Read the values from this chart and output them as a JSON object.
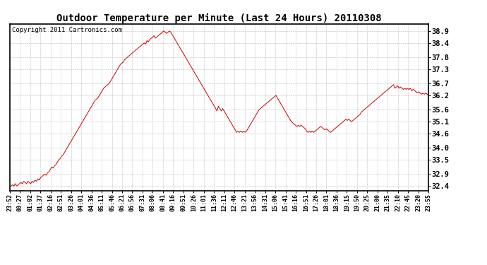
{
  "title": "Outdoor Temperature per Minute (Last 24 Hours) 20110308",
  "copyright_text": "Copyright 2011 Cartronics.com",
  "line_color": "#cc0000",
  "bg_color": "#ffffff",
  "plot_bg_color": "#ffffff",
  "grid_color": "#bbbbbb",
  "yticks": [
    32.4,
    32.9,
    33.5,
    34.0,
    34.6,
    35.1,
    35.6,
    36.2,
    36.7,
    37.3,
    37.8,
    38.4,
    38.9
  ],
  "ylim": [
    32.2,
    39.2
  ],
  "xtick_labels": [
    "23:52",
    "00:27",
    "01:02",
    "01:37",
    "02:16",
    "02:51",
    "03:26",
    "04:01",
    "04:36",
    "05:11",
    "05:46",
    "06:21",
    "06:56",
    "07:31",
    "08:06",
    "08:41",
    "09:16",
    "09:51",
    "10:26",
    "11:01",
    "11:36",
    "12:11",
    "12:46",
    "13:21",
    "13:56",
    "14:31",
    "15:06",
    "15:41",
    "16:16",
    "16:51",
    "17:26",
    "18:01",
    "18:36",
    "19:15",
    "19:50",
    "20:25",
    "21:00",
    "21:35",
    "22:10",
    "22:45",
    "23:20",
    "23:55"
  ],
  "data_points": [
    32.4,
    32.4,
    32.45,
    32.4,
    32.5,
    32.4,
    32.45,
    32.5,
    32.55,
    32.5,
    32.6,
    32.55,
    32.5,
    32.6,
    32.55,
    32.5,
    32.6,
    32.55,
    32.65,
    32.6,
    32.7,
    32.65,
    32.75,
    32.8,
    32.85,
    32.9,
    32.85,
    32.95,
    33.0,
    33.1,
    33.2,
    33.15,
    33.25,
    33.3,
    33.4,
    33.5,
    33.55,
    33.65,
    33.7,
    33.8,
    33.9,
    34.0,
    34.1,
    34.2,
    34.3,
    34.4,
    34.5,
    34.6,
    34.7,
    34.8,
    34.9,
    35.0,
    35.1,
    35.2,
    35.3,
    35.4,
    35.5,
    35.6,
    35.7,
    35.8,
    35.9,
    36.0,
    36.05,
    36.1,
    36.2,
    36.3,
    36.4,
    36.5,
    36.55,
    36.6,
    36.65,
    36.7,
    36.8,
    36.9,
    37.0,
    37.1,
    37.2,
    37.3,
    37.4,
    37.5,
    37.55,
    37.6,
    37.7,
    37.75,
    37.8,
    37.85,
    37.9,
    37.95,
    38.0,
    38.05,
    38.1,
    38.15,
    38.2,
    38.25,
    38.3,
    38.35,
    38.4,
    38.35,
    38.5,
    38.45,
    38.55,
    38.6,
    38.65,
    38.7,
    38.6,
    38.65,
    38.7,
    38.75,
    38.8,
    38.85,
    38.9,
    38.85,
    38.8,
    38.85,
    38.9,
    38.85,
    38.75,
    38.65,
    38.55,
    38.45,
    38.35,
    38.25,
    38.15,
    38.05,
    37.95,
    37.85,
    37.75,
    37.65,
    37.55,
    37.45,
    37.35,
    37.25,
    37.15,
    37.05,
    36.95,
    36.85,
    36.75,
    36.65,
    36.55,
    36.45,
    36.35,
    36.25,
    36.15,
    36.05,
    35.95,
    35.85,
    35.75,
    35.65,
    35.55,
    35.75,
    35.65,
    35.55,
    35.65,
    35.55,
    35.45,
    35.35,
    35.25,
    35.15,
    35.05,
    34.95,
    34.85,
    34.75,
    34.65,
    34.7,
    34.65,
    34.7,
    34.65,
    34.7,
    34.65,
    34.7,
    34.8,
    34.9,
    35.0,
    35.1,
    35.2,
    35.3,
    35.4,
    35.5,
    35.6,
    35.65,
    35.7,
    35.75,
    35.8,
    35.85,
    35.9,
    35.95,
    36.0,
    36.05,
    36.1,
    36.15,
    36.2,
    36.1,
    36.0,
    35.9,
    35.8,
    35.7,
    35.6,
    35.5,
    35.4,
    35.3,
    35.2,
    35.1,
    35.05,
    35.0,
    34.95,
    34.9,
    34.95,
    34.9,
    34.95,
    34.9,
    34.85,
    34.8,
    34.7,
    34.65,
    34.7,
    34.65,
    34.7,
    34.65,
    34.7,
    34.75,
    34.8,
    34.85,
    34.9,
    34.85,
    34.8,
    34.75,
    34.8,
    34.75,
    34.7,
    34.65,
    34.7,
    34.75,
    34.8,
    34.85,
    34.9,
    34.95,
    35.0,
    35.05,
    35.1,
    35.15,
    35.2,
    35.15,
    35.2,
    35.15,
    35.1,
    35.15,
    35.2,
    35.25,
    35.3,
    35.35,
    35.4,
    35.5,
    35.55,
    35.6,
    35.65,
    35.7,
    35.75,
    35.8,
    35.85,
    35.9,
    35.95,
    36.0,
    36.05,
    36.1,
    36.15,
    36.2,
    36.25,
    36.3,
    36.35,
    36.4,
    36.45,
    36.5,
    36.55,
    36.6,
    36.65,
    36.5,
    36.55,
    36.6,
    36.5,
    36.55,
    36.5,
    36.45,
    36.5,
    36.45,
    36.5,
    36.45,
    36.5,
    36.4,
    36.45,
    36.4,
    36.35,
    36.3,
    36.35,
    36.3,
    36.25,
    36.3,
    36.25,
    36.3,
    36.25,
    36.2
  ]
}
